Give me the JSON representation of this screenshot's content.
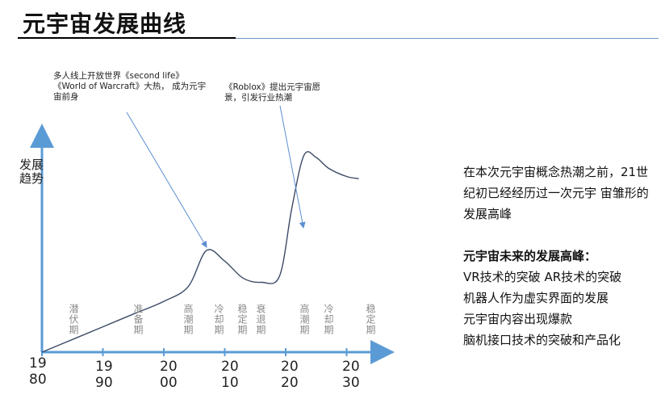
{
  "title": "元宇宙发展曲线",
  "annotations": {
    "a1": "多人线上开放世界《second life》《World of Warcraft》大热， 成为元宇宙前身",
    "a2": "《Roblox》提出元宇宙愿景，引发行业热潮"
  },
  "y_label": "发展趋势",
  "stages": [
    "潜伏期",
    "准备期",
    "高潮期",
    "冷却期",
    "稳定期",
    "衰退期",
    "高潮期",
    "冷却期",
    "稳定期"
  ],
  "x_ticks": [
    "1980",
    "1990",
    "2000",
    "2010",
    "2020",
    "2030"
  ],
  "side": {
    "intro": "在本次元宇宙概念热潮之前，21世纪初已经经历过一次元宇 宙雏形的发展高峰",
    "heading": "元宇宙未来的发展高峰：",
    "items": [
      "VR技术的突破  AR技术的突破",
      "机器人作为虚实界面的发展",
      "元宇宙内容出现爆款",
      "脑机接口技术的突破和产品化"
    ]
  },
  "colors": {
    "axis": "#5b9bd5",
    "curve": "#3b4a66",
    "rule_blue": "#6f97c8"
  },
  "chart_data": {
    "type": "line",
    "title": "",
    "xlabel": "",
    "ylabel": "发展趋势",
    "x": [
      1980,
      1985,
      1990,
      1995,
      2000,
      2004,
      2007,
      2010,
      2013,
      2016,
      2019,
      2021,
      2023,
      2025,
      2027,
      2030,
      2032
    ],
    "values": [
      0,
      0.06,
      0.12,
      0.18,
      0.24,
      0.31,
      0.48,
      0.43,
      0.35,
      0.33,
      0.36,
      0.68,
      0.93,
      0.92,
      0.87,
      0.83,
      0.82
    ]
  }
}
